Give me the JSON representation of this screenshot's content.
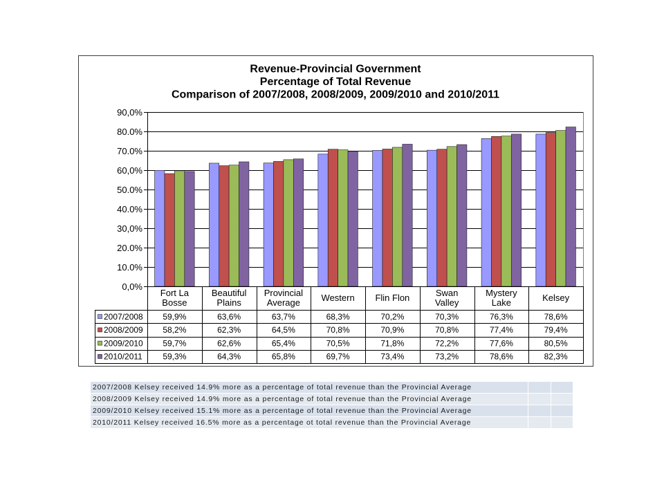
{
  "chart_data": {
    "type": "bar",
    "title_lines": [
      "Revenue-Provincial Government",
      "Percentage of Total Revenue",
      "Comparison of 2007/2008, 2008/2009, 2009/2010 and 2010/2011"
    ],
    "categories": [
      "Fort La Bosse",
      "Beautiful Plains",
      "Provincial Average",
      "Western",
      "Flin Flon",
      "Swan Valley",
      "Mystery Lake",
      "Kelsey"
    ],
    "series": [
      {
        "name": "2007/2008",
        "color": "#9999FF",
        "values": [
          59.9,
          63.6,
          63.7,
          68.3,
          70.2,
          70.3,
          76.3,
          78.6
        ]
      },
      {
        "name": "2008/2009",
        "color": "#C0504D",
        "values": [
          58.2,
          62.3,
          64.5,
          70.8,
          70.9,
          70.8,
          77.4,
          79.4
        ]
      },
      {
        "name": "2009/2010",
        "color": "#9BBB59",
        "values": [
          59.7,
          62.6,
          65.4,
          70.5,
          71.8,
          72.2,
          77.6,
          80.5
        ]
      },
      {
        "name": "2010/2011",
        "color": "#8064A2",
        "values": [
          59.3,
          64.3,
          65.8,
          69.7,
          73.4,
          73.2,
          78.6,
          82.3
        ]
      }
    ],
    "ylim": [
      0,
      90
    ],
    "y_ticks": [
      0,
      10,
      20,
      30,
      40,
      50,
      60,
      70,
      80,
      90
    ],
    "y_tick_labels": [
      "0,0%",
      "10.0%",
      "20.0%",
      "30,0%",
      "40.0%",
      "50.0%",
      "60,0%",
      "70.0%",
      "80.0%",
      "90,0%"
    ],
    "grid": true,
    "legend": "data-table",
    "data_table": true
  },
  "notes_table": {
    "rows": [
      "2007/2008 Kelsey received 14.9% more as a percentage of total revenue than the Provincial Average",
      "2008/2009 Kelsey received 14.9% more as a percentage of total revenue than the Provincial Average",
      "2009/2010 Kelsey received 15.1% more as a percentage of total revenue than the Provincial Average",
      "2010/2011 Kelsey received 16.5% more as a percentage ot total revenue than the Provincial Average"
    ]
  }
}
